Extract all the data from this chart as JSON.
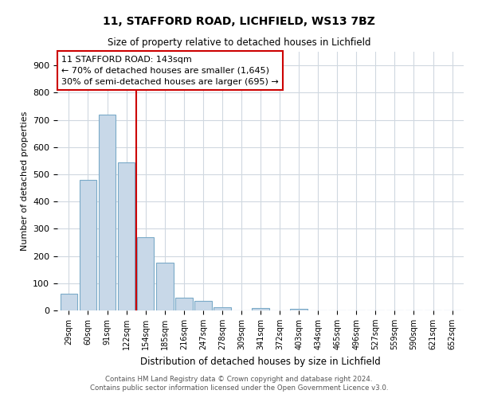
{
  "title": "11, STAFFORD ROAD, LICHFIELD, WS13 7BZ",
  "subtitle": "Size of property relative to detached houses in Lichfield",
  "xlabel": "Distribution of detached houses by size in Lichfield",
  "ylabel": "Number of detached properties",
  "bar_labels": [
    "29sqm",
    "60sqm",
    "91sqm",
    "122sqm",
    "154sqm",
    "185sqm",
    "216sqm",
    "247sqm",
    "278sqm",
    "309sqm",
    "341sqm",
    "372sqm",
    "403sqm",
    "434sqm",
    "465sqm",
    "496sqm",
    "527sqm",
    "559sqm",
    "590sqm",
    "621sqm",
    "652sqm"
  ],
  "bar_values": [
    60,
    480,
    718,
    543,
    270,
    175,
    48,
    35,
    13,
    0,
    8,
    0,
    6,
    0,
    0,
    0,
    0,
    0,
    0,
    0,
    0
  ],
  "bar_color": "#c8d8e8",
  "bar_edge_color": "#7aaac8",
  "ylim": [
    0,
    950
  ],
  "yticks": [
    0,
    100,
    200,
    300,
    400,
    500,
    600,
    700,
    800,
    900
  ],
  "vline_x_index": 3.5,
  "vline_color": "#cc0000",
  "annotation_line1": "11 STAFFORD ROAD: 143sqm",
  "annotation_line2": "← 70% of detached houses are smaller (1,645)",
  "annotation_line3": "30% of semi-detached houses are larger (695) →",
  "box_edge_color": "#cc0000",
  "footer_line1": "Contains HM Land Registry data © Crown copyright and database right 2024.",
  "footer_line2": "Contains public sector information licensed under the Open Government Licence v3.0.",
  "background_color": "#ffffff",
  "grid_color": "#d0d8e0"
}
